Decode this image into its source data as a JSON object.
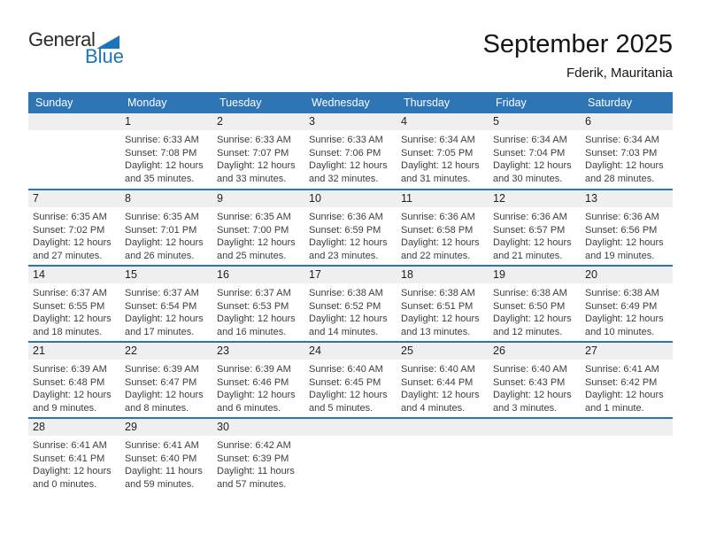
{
  "logo": {
    "general": "General",
    "blue": "Blue"
  },
  "header": {
    "title": "September 2025",
    "subtitle": "Fderik, Mauritania"
  },
  "weekday_headers": [
    "Sunday",
    "Monday",
    "Tuesday",
    "Wednesday",
    "Thursday",
    "Friday",
    "Saturday"
  ],
  "labels": {
    "sunrise": "Sunrise:",
    "sunset": "Sunset:",
    "daylight": "Daylight:"
  },
  "colors": {
    "header_bg": "#2E75B6",
    "week_separator": "#2E75B6",
    "day_strip_bg": "#EFEFEF",
    "logo_blue": "#1B75BB"
  },
  "weeks": [
    [
      null,
      {
        "day": "1",
        "sunrise": "6:33 AM",
        "sunset": "7:08 PM",
        "daylight": "12 hours and 35 minutes."
      },
      {
        "day": "2",
        "sunrise": "6:33 AM",
        "sunset": "7:07 PM",
        "daylight": "12 hours and 33 minutes."
      },
      {
        "day": "3",
        "sunrise": "6:33 AM",
        "sunset": "7:06 PM",
        "daylight": "12 hours and 32 minutes."
      },
      {
        "day": "4",
        "sunrise": "6:34 AM",
        "sunset": "7:05 PM",
        "daylight": "12 hours and 31 minutes."
      },
      {
        "day": "5",
        "sunrise": "6:34 AM",
        "sunset": "7:04 PM",
        "daylight": "12 hours and 30 minutes."
      },
      {
        "day": "6",
        "sunrise": "6:34 AM",
        "sunset": "7:03 PM",
        "daylight": "12 hours and 28 minutes."
      }
    ],
    [
      {
        "day": "7",
        "sunrise": "6:35 AM",
        "sunset": "7:02 PM",
        "daylight": "12 hours and 27 minutes."
      },
      {
        "day": "8",
        "sunrise": "6:35 AM",
        "sunset": "7:01 PM",
        "daylight": "12 hours and 26 minutes."
      },
      {
        "day": "9",
        "sunrise": "6:35 AM",
        "sunset": "7:00 PM",
        "daylight": "12 hours and 25 minutes."
      },
      {
        "day": "10",
        "sunrise": "6:36 AM",
        "sunset": "6:59 PM",
        "daylight": "12 hours and 23 minutes."
      },
      {
        "day": "11",
        "sunrise": "6:36 AM",
        "sunset": "6:58 PM",
        "daylight": "12 hours and 22 minutes."
      },
      {
        "day": "12",
        "sunrise": "6:36 AM",
        "sunset": "6:57 PM",
        "daylight": "12 hours and 21 minutes."
      },
      {
        "day": "13",
        "sunrise": "6:36 AM",
        "sunset": "6:56 PM",
        "daylight": "12 hours and 19 minutes."
      }
    ],
    [
      {
        "day": "14",
        "sunrise": "6:37 AM",
        "sunset": "6:55 PM",
        "daylight": "12 hours and 18 minutes."
      },
      {
        "day": "15",
        "sunrise": "6:37 AM",
        "sunset": "6:54 PM",
        "daylight": "12 hours and 17 minutes."
      },
      {
        "day": "16",
        "sunrise": "6:37 AM",
        "sunset": "6:53 PM",
        "daylight": "12 hours and 16 minutes."
      },
      {
        "day": "17",
        "sunrise": "6:38 AM",
        "sunset": "6:52 PM",
        "daylight": "12 hours and 14 minutes."
      },
      {
        "day": "18",
        "sunrise": "6:38 AM",
        "sunset": "6:51 PM",
        "daylight": "12 hours and 13 minutes."
      },
      {
        "day": "19",
        "sunrise": "6:38 AM",
        "sunset": "6:50 PM",
        "daylight": "12 hours and 12 minutes."
      },
      {
        "day": "20",
        "sunrise": "6:38 AM",
        "sunset": "6:49 PM",
        "daylight": "12 hours and 10 minutes."
      }
    ],
    [
      {
        "day": "21",
        "sunrise": "6:39 AM",
        "sunset": "6:48 PM",
        "daylight": "12 hours and 9 minutes."
      },
      {
        "day": "22",
        "sunrise": "6:39 AM",
        "sunset": "6:47 PM",
        "daylight": "12 hours and 8 minutes."
      },
      {
        "day": "23",
        "sunrise": "6:39 AM",
        "sunset": "6:46 PM",
        "daylight": "12 hours and 6 minutes."
      },
      {
        "day": "24",
        "sunrise": "6:40 AM",
        "sunset": "6:45 PM",
        "daylight": "12 hours and 5 minutes."
      },
      {
        "day": "25",
        "sunrise": "6:40 AM",
        "sunset": "6:44 PM",
        "daylight": "12 hours and 4 minutes."
      },
      {
        "day": "26",
        "sunrise": "6:40 AM",
        "sunset": "6:43 PM",
        "daylight": "12 hours and 3 minutes."
      },
      {
        "day": "27",
        "sunrise": "6:41 AM",
        "sunset": "6:42 PM",
        "daylight": "12 hours and 1 minute."
      }
    ],
    [
      {
        "day": "28",
        "sunrise": "6:41 AM",
        "sunset": "6:41 PM",
        "daylight": "12 hours and 0 minutes."
      },
      {
        "day": "29",
        "sunrise": "6:41 AM",
        "sunset": "6:40 PM",
        "daylight": "11 hours and 59 minutes."
      },
      {
        "day": "30",
        "sunrise": "6:42 AM",
        "sunset": "6:39 PM",
        "daylight": "11 hours and 57 minutes."
      },
      null,
      null,
      null,
      null
    ]
  ]
}
